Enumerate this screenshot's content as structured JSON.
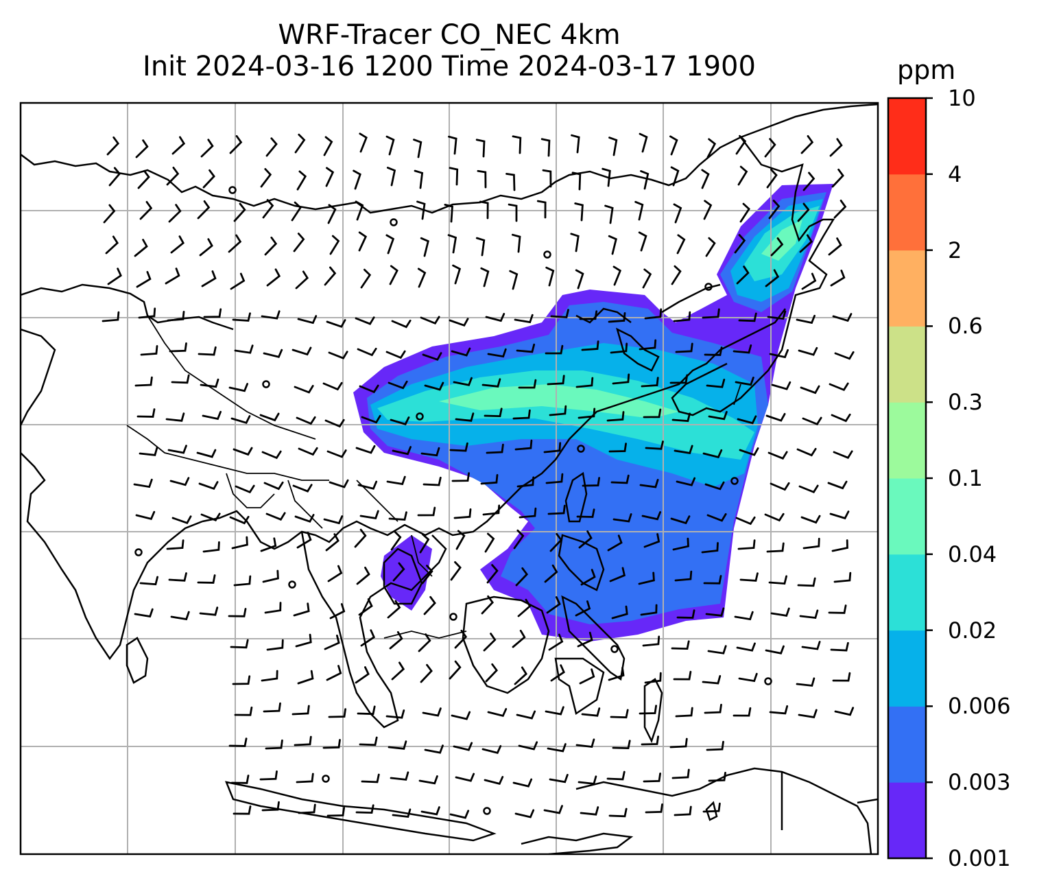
{
  "title": {
    "line1": "WRF-Tracer CO_NEC 4km",
    "line2": "Init 2024-03-16 1200 Time 2024-03-17 1900"
  },
  "colorbar": {
    "unit": "ppm",
    "levels": [
      "0.001",
      "0.003",
      "0.006",
      "0.02",
      "0.04",
      "0.1",
      "0.3",
      "0.6",
      "2",
      "4",
      "10"
    ],
    "colors": [
      "#6728f8",
      "#3370f4",
      "#06b1ea",
      "#2ce0d7",
      "#6af9bd",
      "#9cfa9c",
      "#cce188",
      "#ffb061",
      "#ff703a",
      "#ff2d19"
    ]
  },
  "map": {
    "gridlines": true,
    "frame_color": "#000000",
    "grid_color": "#b0b0b0",
    "coastline_color": "#000000",
    "wind_barb_color": "#000000"
  }
}
